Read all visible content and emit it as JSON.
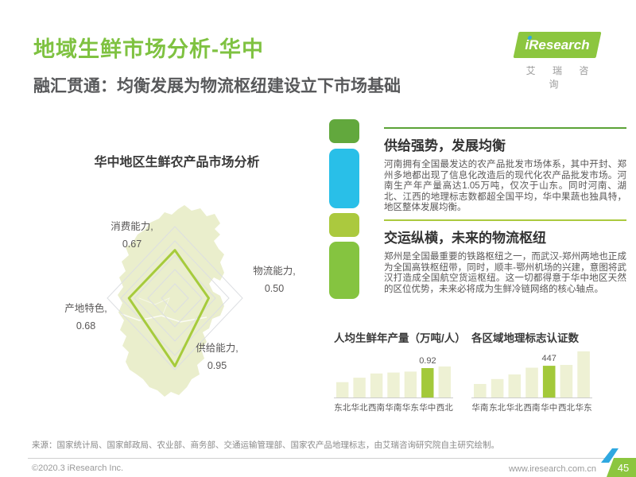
{
  "header": {
    "title": "地域生鲜市场分析-华中",
    "subtitle": "融汇贯通：均衡发展为物流枢纽建设立下市场基础",
    "logo": {
      "brand": "iResearch",
      "brand_cn": "艾 瑞 咨 询"
    }
  },
  "colors": {
    "title_green": "#7FC241",
    "logo_green": "#8CC63F",
    "block_dark_green": "#62A83D",
    "block_cyan": "#29BFE8",
    "block_yellow_green": "#ABC93E",
    "block_mid_green": "#85C440",
    "radar_line": "#A6CB3C",
    "bar_light": "#EEF1D4",
    "bar_highlight": "#A3C93A",
    "map_fill": "#EAEECC",
    "grid_gray": "#DCDEE2",
    "text_gray": "#595757"
  },
  "sections": [
    {
      "title": "供给强势，发展均衡",
      "body": "河南拥有全国最发达的农产品批发市场体系，其中开封、郑州多地都出现了信息化改造后的现代化农产品批发市场。河南生产年产量高达1.05万吨，仅次于山东。同时河南、湖北、江西的地理标志数都超全国平均，华中果蔬也独具特，地区整体发展均衡。"
    },
    {
      "title": "交运纵横，未来的物流枢纽",
      "body": "郑州是全国最重要的铁路枢纽之一，而武汉-郑州两地也正成为全国高铁枢纽带，同时，顺丰-鄂州机场的兴建，意图将武汉打造成全国航空货运枢纽。这一切都得意于华中地区天然的区位优势，未来必将成为生鲜冷链网络的核心轴点。"
    }
  ],
  "chart_data": [
    {
      "type": "radar",
      "title": "华中地区生鲜农产品市场分析",
      "axes": [
        "消费能力",
        "物流能力",
        "供给能力",
        "产地特色"
      ],
      "values": [
        0.67,
        0.5,
        0.95,
        0.68
      ],
      "value_labels": [
        "0.67",
        "0.50",
        "0.95",
        "0.68"
      ],
      "max": 1.0,
      "grid_levels": [
        0.2,
        0.4,
        0.6,
        0.8,
        1.0
      ],
      "legend_position": "none",
      "grid": true
    },
    {
      "type": "bar",
      "title": "人均生鲜年产量（万吨/人）",
      "categories": [
        "东北",
        "华北",
        "西南",
        "华南",
        "华东",
        "华中",
        "西北"
      ],
      "values": [
        0.48,
        0.62,
        0.75,
        0.78,
        0.81,
        0.92,
        0.97
      ],
      "highlight_index": 5,
      "labeled": {
        "index": 5,
        "text": "0.92"
      },
      "ylim": [
        0,
        1.0
      ],
      "grid": false
    },
    {
      "type": "bar",
      "title": "各区域地理标志认证数",
      "categories": [
        "华南",
        "东北",
        "华北",
        "西南",
        "华中",
        "西北",
        "华东"
      ],
      "values": [
        190,
        260,
        325,
        420,
        447,
        460,
        650
      ],
      "highlight_index": 4,
      "labeled": {
        "index": 4,
        "text": "447"
      },
      "ylim": [
        0,
        700
      ],
      "grid": false
    }
  ],
  "source": "来源：国家统计局、国家邮政局、农业部、商务部、交通运输管理部、国家农产品地理标志，由艾瑞咨询研究院自主研究绘制。",
  "footer": {
    "copyright": "©2020.3 iResearch Inc.",
    "website": "www.iresearch.com.cn",
    "page": "45"
  }
}
